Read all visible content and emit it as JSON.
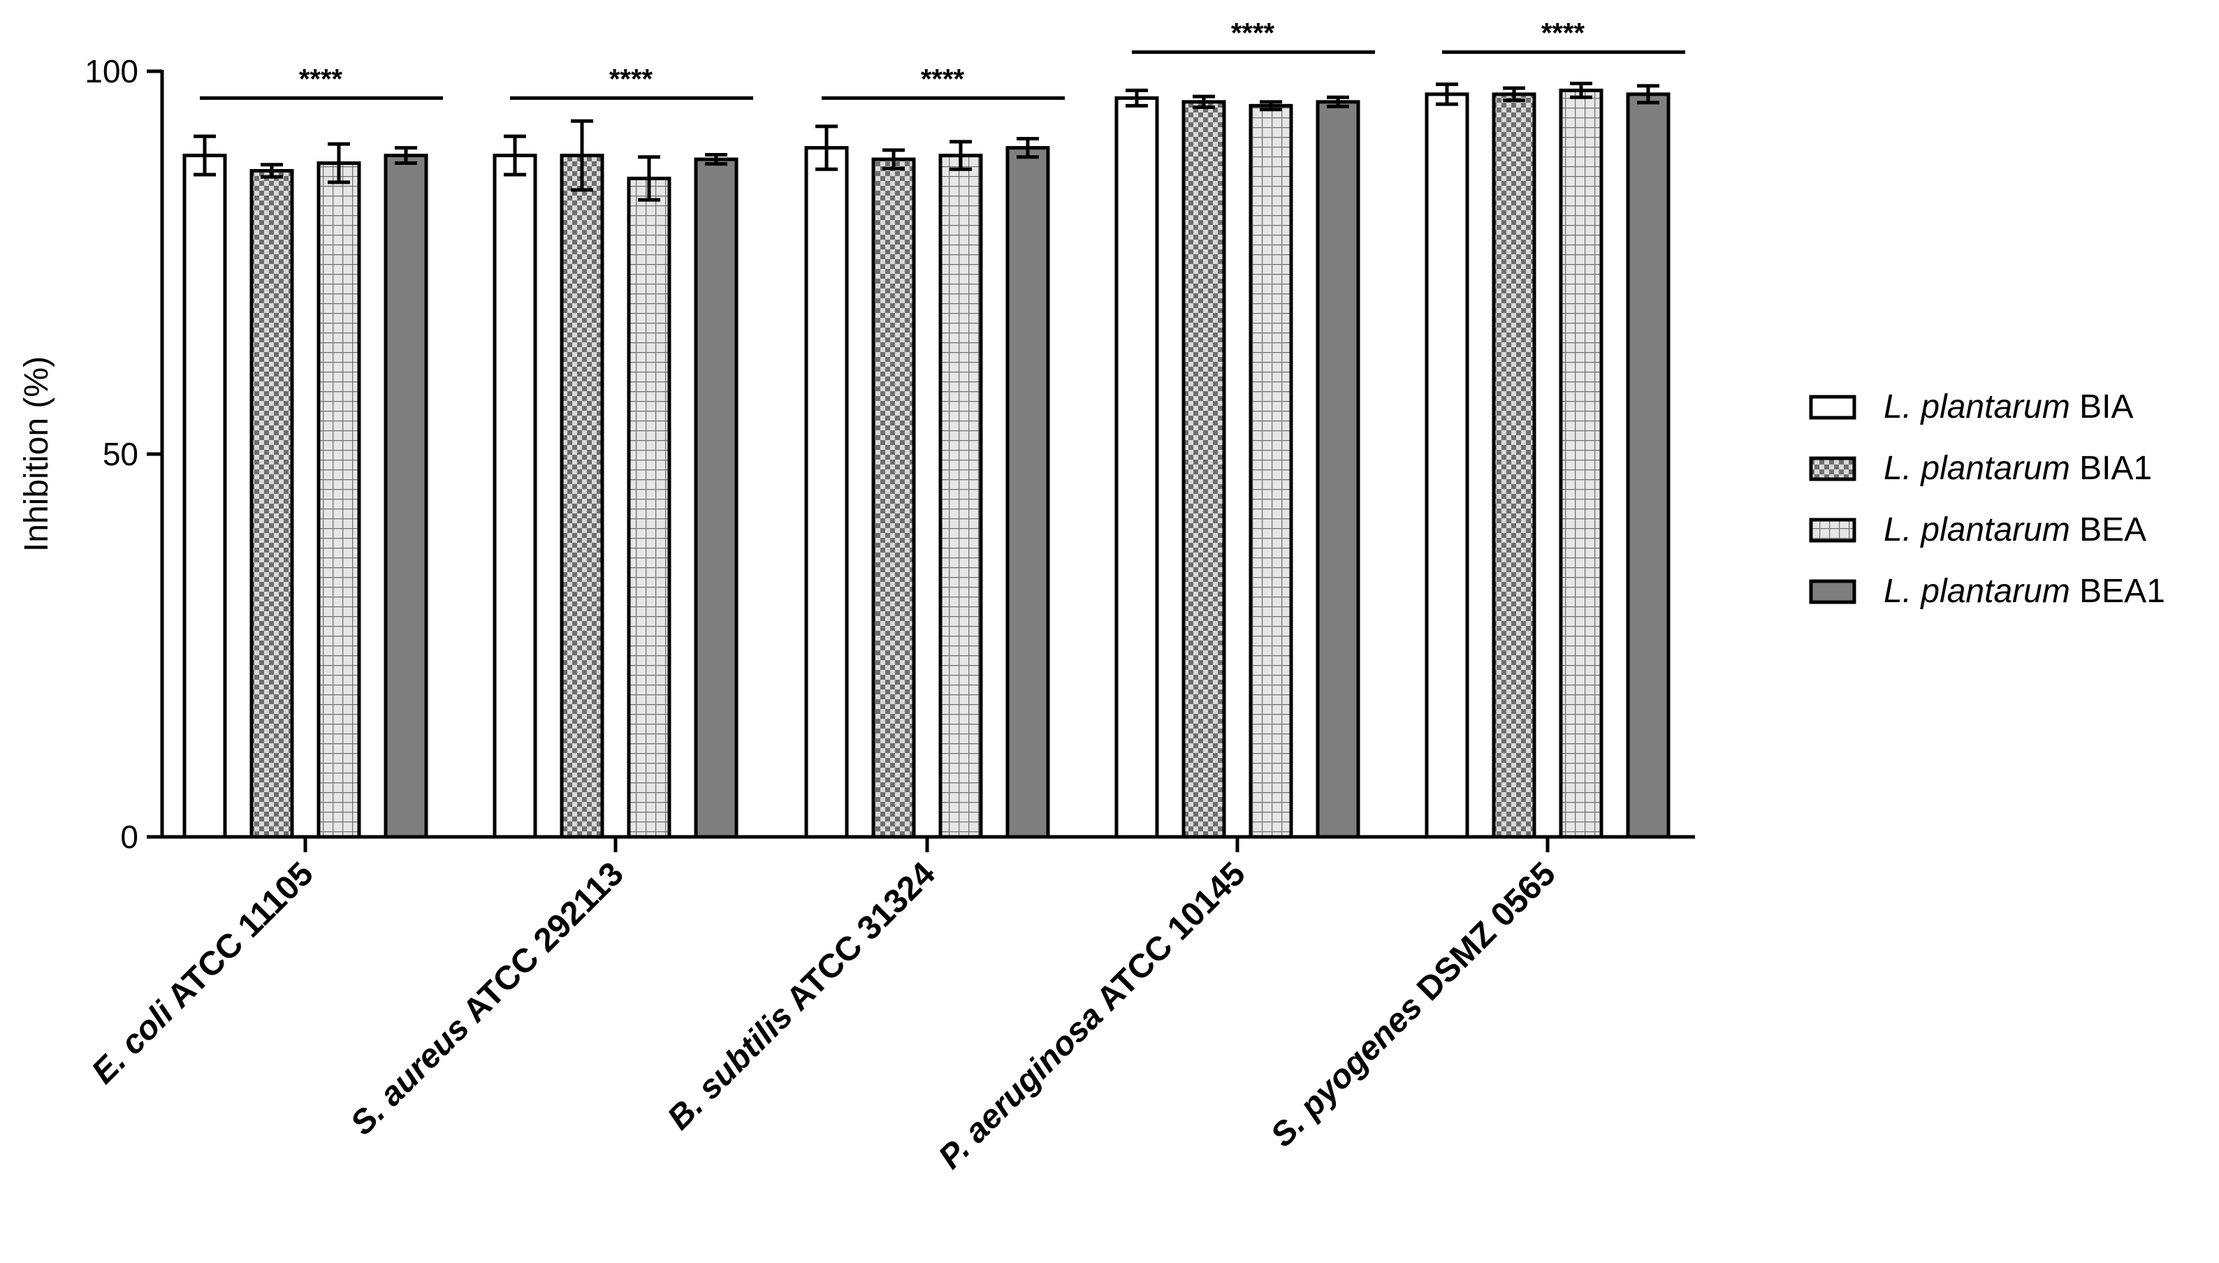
{
  "chart_data": {
    "type": "bar",
    "ylabel": "Inhibition (%)",
    "ylim": [
      0,
      100
    ],
    "yticks": [
      "0",
      "50",
      "100"
    ],
    "grid": false,
    "legend_position": "right",
    "categories": [
      {
        "italic": "E. coli",
        "rest": " ATCC 11105"
      },
      {
        "italic": "S. aureus",
        "rest": " ATCC  292113"
      },
      {
        "italic": "B. subtilis",
        "rest": " ATCC  31324"
      },
      {
        "italic": "P. aeruginosa",
        "rest": " ATCC  10145"
      },
      {
        "italic": "S. pyogenes",
        "rest": " DSMZ  0565"
      }
    ],
    "series": [
      {
        "name_italic": "L. plantarum",
        "name_rest": " BIA",
        "pattern": "white",
        "values": [
          89,
          89,
          90,
          96.5,
          97
        ],
        "errors": [
          2.5,
          2.5,
          2.8,
          1.0,
          1.3
        ]
      },
      {
        "name_italic": "L. plantarum",
        "name_rest": " BIA1",
        "pattern": "checker",
        "values": [
          87,
          89,
          88.5,
          96,
          97
        ],
        "errors": [
          0.8,
          4.5,
          1.2,
          0.7,
          0.8
        ]
      },
      {
        "name_italic": "L. plantarum",
        "name_rest": " BEA",
        "pattern": "grid",
        "values": [
          88,
          86,
          89,
          95.5,
          97.5
        ],
        "errors": [
          2.5,
          2.8,
          1.8,
          0.5,
          0.9
        ]
      },
      {
        "name_italic": "L. plantarum",
        "name_rest": " BEA1",
        "pattern": "gray",
        "values": [
          89,
          88.5,
          90,
          96,
          97
        ],
        "errors": [
          1.0,
          0.6,
          1.2,
          0.6,
          1.1
        ]
      }
    ],
    "annotations": [
      {
        "category_index": 0,
        "text": "****",
        "y": 96.5
      },
      {
        "category_index": 1,
        "text": "****",
        "y": 96.5
      },
      {
        "category_index": 2,
        "text": "****",
        "y": 96.5
      },
      {
        "category_index": 3,
        "text": "****",
        "y": 102.5
      },
      {
        "category_index": 4,
        "text": "****",
        "y": 102.5
      }
    ]
  }
}
